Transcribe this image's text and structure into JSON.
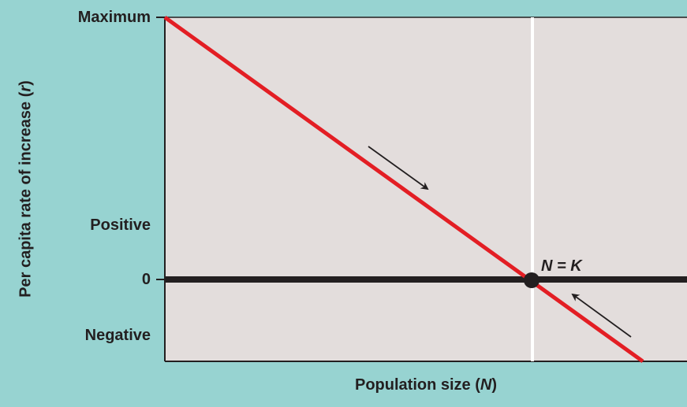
{
  "diagram": {
    "y_axis_title_prefix": "Per capita rate of increase (",
    "y_axis_title_var": "r",
    "y_axis_title_suffix": ")",
    "x_axis_title_prefix": "Population size (",
    "x_axis_title_var": "N",
    "x_axis_title_suffix": ")",
    "y_levels": {
      "maximum": "Maximum",
      "positive": "Positive",
      "zero": "0",
      "negative": "Negative"
    },
    "equilibrium_label": "N = K",
    "colors": {
      "background": "#97d3d1",
      "plot_area": "#e3dddc",
      "regression_line": "#e31e24",
      "zero_line": "#231f20",
      "k_marker_line": "#ffffff",
      "arrow": "#231f20"
    }
  }
}
